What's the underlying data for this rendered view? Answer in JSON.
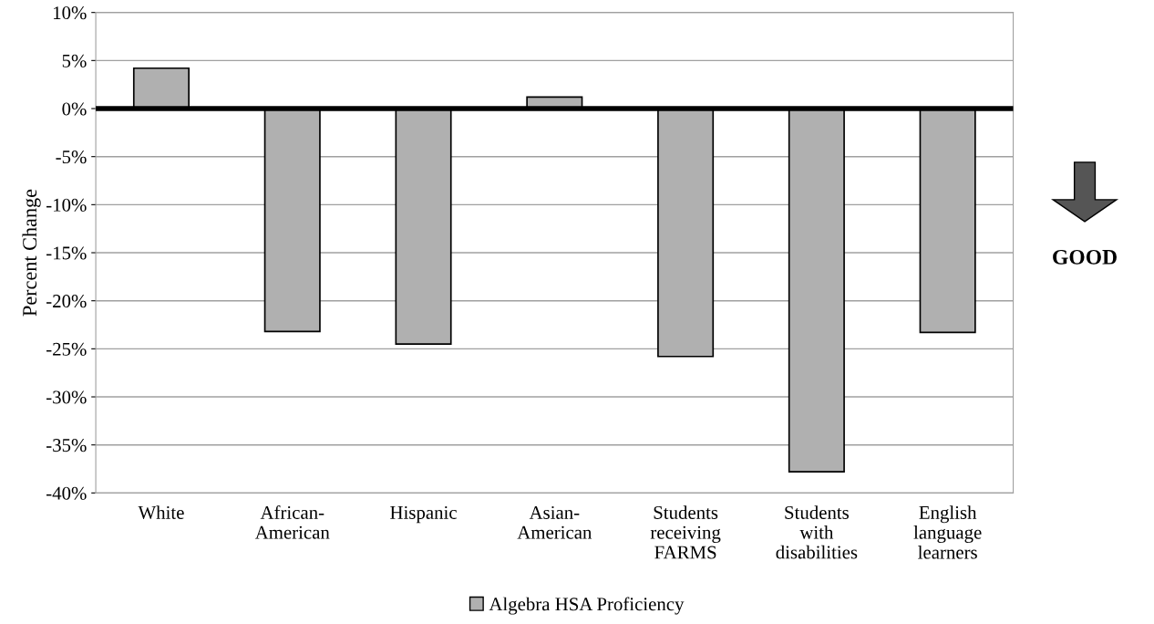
{
  "chart_data": {
    "type": "bar",
    "ylabel": "Percent Change",
    "categories": [
      "White",
      "African-\nAmerican",
      "Hispanic",
      "Asian-\nAmerican",
      "Students\nreceiving\nFARMS",
      "Students\nwith\ndisabilities",
      "English\nlanguage\nlearners"
    ],
    "series": [
      {
        "name": "Algebra HSA Proficiency",
        "color": "#b0b0b0",
        "values": [
          4.2,
          -23.2,
          -24.5,
          1.2,
          -25.8,
          -37.8,
          -23.3
        ]
      }
    ],
    "ylim": [
      -40,
      10
    ],
    "yticks": [
      {
        "value": -40,
        "label": "-40%"
      },
      {
        "value": -35,
        "label": "-35%"
      },
      {
        "value": -30,
        "label": "-30%"
      },
      {
        "value": -25,
        "label": "-25%"
      },
      {
        "value": -20,
        "label": "-20%"
      },
      {
        "value": -15,
        "label": "-15%"
      },
      {
        "value": -10,
        "label": "-10%"
      },
      {
        "value": -5,
        "label": "-5%"
      },
      {
        "value": 0,
        "label": "0%"
      },
      {
        "value": 5,
        "label": "5%"
      },
      {
        "value": 10,
        "label": "10%"
      }
    ],
    "ref_lines": [
      {
        "axis": "y",
        "value": 0,
        "color": "#000000"
      }
    ],
    "annotations": [
      "GOOD"
    ],
    "grid": "y",
    "legend": "bottom"
  }
}
